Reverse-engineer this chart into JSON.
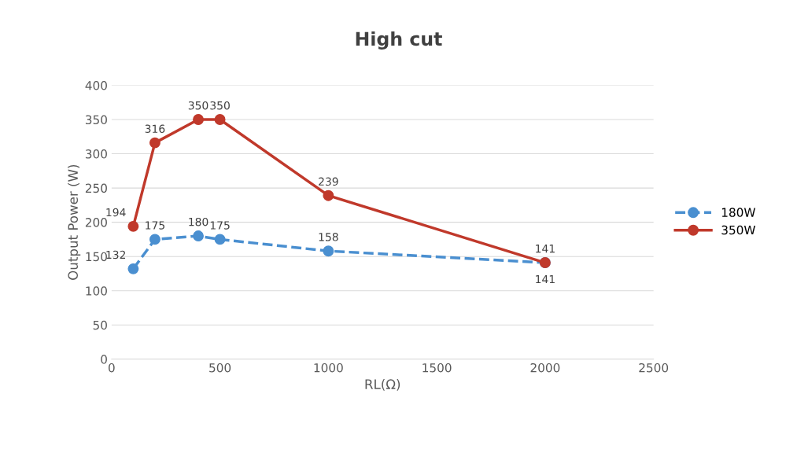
{
  "chart_data": {
    "type": "line",
    "title": "High cut",
    "xlabel": "RL(Ω)",
    "ylabel": "Output Power (W)",
    "x": [
      100,
      200,
      400,
      500,
      1000,
      2000
    ],
    "series": [
      {
        "name": "180W",
        "color": "#4a8fd0",
        "line_style": "dashed",
        "values": [
          132,
          175,
          180,
          175,
          158,
          141
        ]
      },
      {
        "name": "350W",
        "color": "#c0392b",
        "line_style": "solid",
        "values": [
          194,
          316,
          350,
          350,
          239,
          141
        ]
      }
    ],
    "xlim": [
      0,
      2500
    ],
    "xticks": [
      0,
      500,
      1000,
      1500,
      2000,
      2500
    ],
    "ylim": [
      0,
      400
    ],
    "yticks": [
      0,
      50,
      100,
      150,
      200,
      250,
      300,
      350,
      400
    ],
    "grid": "y",
    "legend": "right",
    "marker": "circle",
    "data_labels": true
  }
}
